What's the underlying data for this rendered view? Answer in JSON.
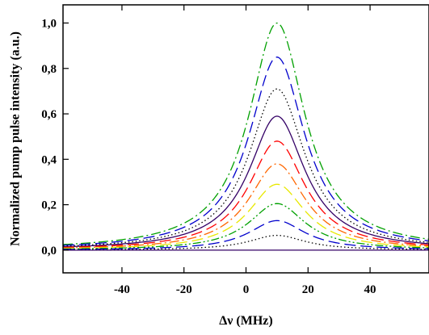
{
  "chart_data": {
    "type": "line",
    "xlabel": "Δν (MHz)",
    "ylabel": "Normalized pump pulse intensity (a.u.)",
    "xlim": [
      -59,
      59
    ],
    "ylim": [
      -0.1,
      1.08
    ],
    "x_ticks": [
      -40,
      -20,
      0,
      20,
      40
    ],
    "x_tick_labels": [
      "-40",
      "-20",
      "0",
      "20",
      "40"
    ],
    "y_ticks": [
      0.0,
      0.2,
      0.4,
      0.6,
      0.8,
      1.0
    ],
    "y_tick_labels": [
      "0,0",
      "0,2",
      "0,4",
      "0,6",
      "0,8",
      "1,0"
    ],
    "grid": false,
    "legend": "none",
    "curve_shape": "lorentzian",
    "center": 10,
    "half_width_at_half_max": 11,
    "x": [
      -59,
      -50,
      -40,
      -30,
      -20,
      -10,
      0,
      5,
      10,
      15,
      20,
      30,
      40,
      50,
      59
    ],
    "series": [
      {
        "peak": 1.0,
        "color": "#00a000",
        "dash": "dash-dot",
        "values": [
          0.025,
          0.034,
          0.046,
          0.07,
          0.119,
          0.232,
          0.548,
          0.829,
          1.0,
          0.829,
          0.548,
          0.232,
          0.119,
          0.07,
          0.048
        ]
      },
      {
        "peak": 0.85,
        "color": "#0000cc",
        "dash": "long-dash",
        "values": [
          0.021,
          0.029,
          0.039,
          0.06,
          0.101,
          0.197,
          0.466,
          0.705,
          0.85,
          0.705,
          0.466,
          0.197,
          0.101,
          0.06,
          0.041
        ]
      },
      {
        "peak": 0.71,
        "color": "#000000",
        "dash": "dotted",
        "values": [
          0.018,
          0.024,
          0.033,
          0.05,
          0.084,
          0.165,
          0.389,
          0.589,
          0.71,
          0.589,
          0.389,
          0.165,
          0.084,
          0.05,
          0.034
        ]
      },
      {
        "peak": 0.59,
        "color": "#330066",
        "dash": "solid",
        "values": [
          0.015,
          0.02,
          0.027,
          0.041,
          0.07,
          0.137,
          0.323,
          0.489,
          0.59,
          0.489,
          0.323,
          0.137,
          0.07,
          0.041,
          0.028
        ]
      },
      {
        "peak": 0.48,
        "color": "#ff0000",
        "dash": "long-dash",
        "values": [
          0.012,
          0.016,
          0.022,
          0.034,
          0.057,
          0.111,
          0.263,
          0.398,
          0.48,
          0.398,
          0.263,
          0.111,
          0.057,
          0.034,
          0.023
        ]
      },
      {
        "peak": 0.38,
        "color": "#ff6600",
        "dash": "dash-dot",
        "values": [
          0.01,
          0.013,
          0.017,
          0.027,
          0.045,
          0.088,
          0.208,
          0.315,
          0.38,
          0.315,
          0.208,
          0.088,
          0.045,
          0.027,
          0.018
        ]
      },
      {
        "peak": 0.29,
        "color": "#e8e800",
        "dash": "long-dash",
        "values": [
          0.007,
          0.01,
          0.013,
          0.02,
          0.034,
          0.067,
          0.159,
          0.24,
          0.29,
          0.24,
          0.159,
          0.067,
          0.034,
          0.02,
          0.014
        ]
      },
      {
        "peak": 0.205,
        "color": "#00a000",
        "dash": "dash-dot-dot",
        "values": [
          0.005,
          0.007,
          0.009,
          0.014,
          0.024,
          0.048,
          0.112,
          0.17,
          0.205,
          0.17,
          0.112,
          0.048,
          0.024,
          0.014,
          0.01
        ]
      },
      {
        "peak": 0.13,
        "color": "#0000cc",
        "dash": "long-dash",
        "values": [
          0.003,
          0.004,
          0.006,
          0.009,
          0.015,
          0.03,
          0.071,
          0.108,
          0.13,
          0.108,
          0.071,
          0.03,
          0.015,
          0.009,
          0.006
        ]
      },
      {
        "peak": 0.065,
        "color": "#000000",
        "dash": "dotted",
        "values": [
          0.002,
          0.002,
          0.003,
          0.005,
          0.008,
          0.015,
          0.036,
          0.054,
          0.065,
          0.054,
          0.036,
          0.015,
          0.008,
          0.005,
          0.003
        ]
      },
      {
        "peak": 0.0,
        "color": "#330066",
        "dash": "solid",
        "values": [
          0,
          0,
          0,
          0,
          0,
          0,
          0,
          0,
          0,
          0,
          0,
          0,
          0,
          0,
          0
        ]
      }
    ]
  }
}
